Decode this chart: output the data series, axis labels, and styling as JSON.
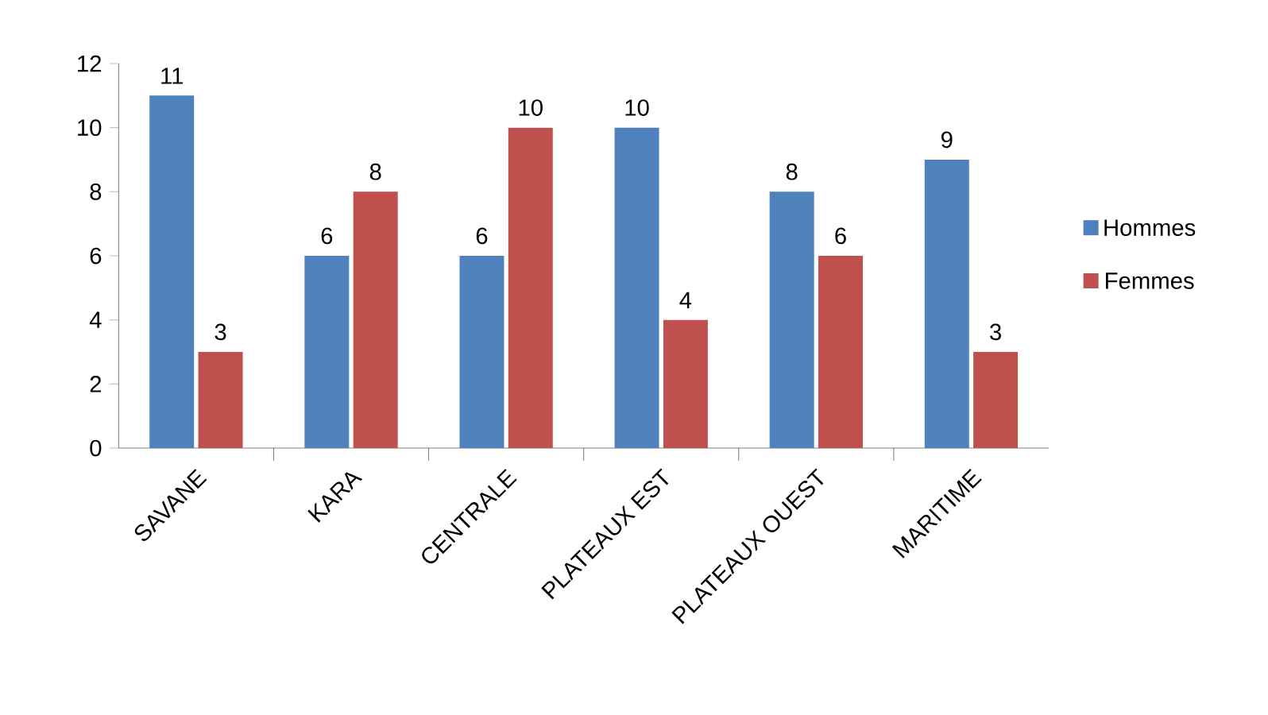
{
  "chart_data": {
    "type": "bar",
    "categories": [
      "SAVANE",
      "KARA",
      "CENTRALE",
      "PLATEAUX EST",
      "PLATEAUX OUEST",
      "MARITIME"
    ],
    "series": [
      {
        "name": "Hommes",
        "color": "#4f81bd",
        "values": [
          11,
          6,
          6,
          10,
          8,
          9
        ]
      },
      {
        "name": "Femmes",
        "color": "#c0504d",
        "values": [
          3,
          8,
          10,
          4,
          6,
          3
        ]
      }
    ],
    "ylim": [
      0,
      12
    ],
    "yticks": [
      0,
      2,
      4,
      6,
      8,
      10,
      12
    ],
    "data_labels": true,
    "grid": false,
    "legend": "right"
  }
}
